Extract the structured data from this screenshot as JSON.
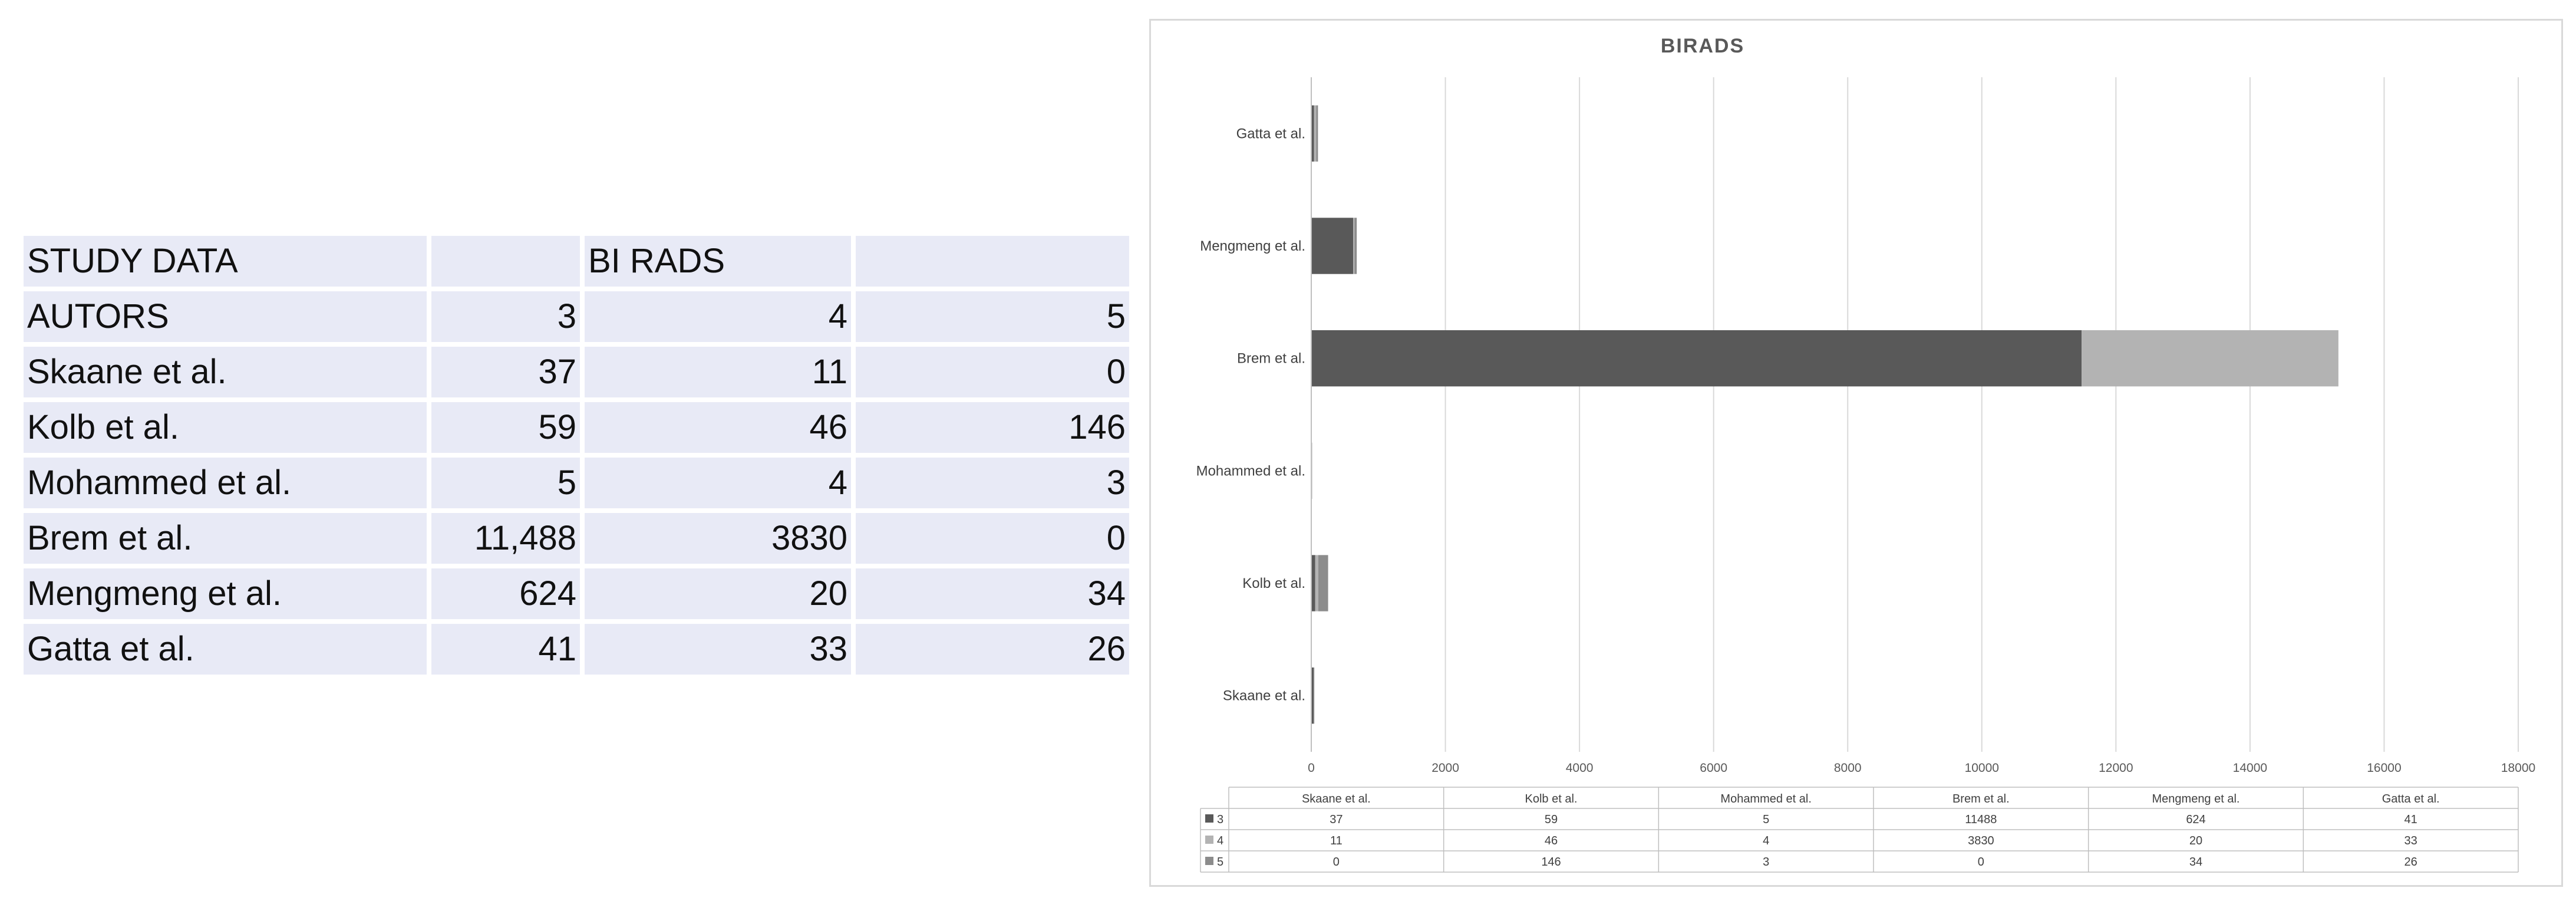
{
  "table": {
    "rows": [
      [
        "STUDY DATA",
        "",
        "BI RADS",
        ""
      ],
      [
        "AUTORS",
        "3",
        "4",
        "5"
      ],
      [
        "Skaane et al.",
        "37",
        "11",
        "0"
      ],
      [
        "Kolb et al.",
        "59",
        "46",
        "146"
      ],
      [
        "Mohammed et al.",
        "5",
        "4",
        "3"
      ],
      [
        "Brem et al.",
        "11,488",
        "3830",
        "0"
      ],
      [
        "Mengmeng et al.",
        "624",
        "20",
        "34"
      ],
      [
        "Gatta et al.",
        "41",
        "33",
        "26"
      ]
    ]
  },
  "chart_data": {
    "type": "bar",
    "orientation": "horizontal",
    "stacked": true,
    "title": "BIRADS",
    "categories": [
      "Skaane et al.",
      "Kolb et al.",
      "Mohammed et al.",
      "Brem et al.",
      "Mengmeng et al.",
      "Gatta et al."
    ],
    "series": [
      {
        "name": "3",
        "values": [
          37,
          59,
          5,
          11488,
          624,
          41
        ],
        "color": "#595959"
      },
      {
        "name": "4",
        "values": [
          11,
          46,
          4,
          3830,
          20,
          33
        ],
        "color": "#b3b3b3"
      },
      {
        "name": "5",
        "values": [
          0,
          146,
          3,
          0,
          34,
          26
        ],
        "color": "#8c8c8c"
      }
    ],
    "xlim": [
      0,
      18000
    ],
    "xticks": [
      0,
      2000,
      4000,
      6000,
      8000,
      10000,
      12000,
      14000,
      16000,
      18000
    ],
    "grid": true,
    "legend": "data-table"
  }
}
